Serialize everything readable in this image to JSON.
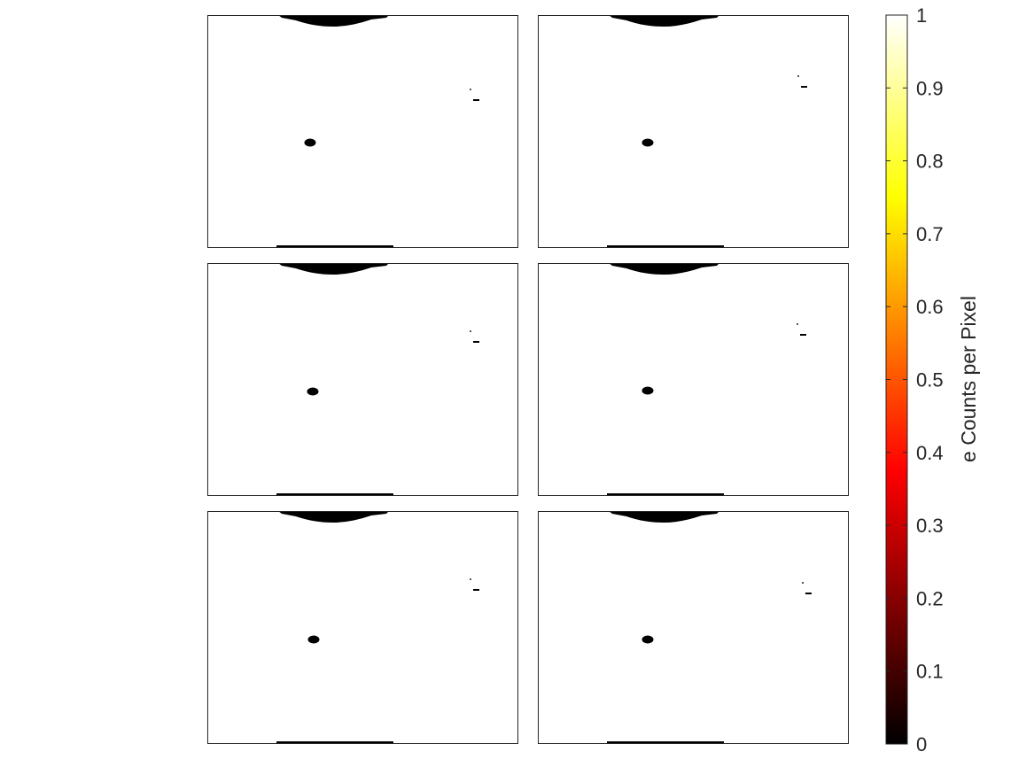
{
  "chart_data": {
    "type": "heatmap",
    "layout": "3 rows x 2 columns of image panels",
    "panels": [
      {
        "row": 1,
        "col": 1,
        "description": "mostly saturated (value 1) frame with dark arc at top edge, dark spot left-center, faint speck right"
      },
      {
        "row": 1,
        "col": 2,
        "description": "mostly saturated frame with dark arc at top edge, dark spot left-center, faint speck right"
      },
      {
        "row": 2,
        "col": 1,
        "description": "mostly saturated frame with dark arc at top edge, dark spot left-center, faint speck right"
      },
      {
        "row": 2,
        "col": 2,
        "description": "mostly saturated frame with dark arc at top edge, dark spot left-center, faint speck right"
      },
      {
        "row": 3,
        "col": 1,
        "description": "mostly saturated frame with dark arc at top edge, dark spot left-center, faint speck right"
      },
      {
        "row": 3,
        "col": 2,
        "description": "mostly saturated frame with dark arc at top edge, dark spot left-center, faint speck right"
      }
    ],
    "colormap": "hot",
    "clim": [
      0,
      1
    ],
    "colorbar": {
      "label": "e Counts per Pixel",
      "ticks": [
        0,
        0.1,
        0.2,
        0.3,
        0.4,
        0.5,
        0.6,
        0.7,
        0.8,
        0.9,
        1
      ],
      "tick_labels": [
        "0",
        "0.1",
        "0.2",
        "0.3",
        "0.4",
        "0.5",
        "0.6",
        "0.7",
        "0.8",
        "0.9",
        "1"
      ],
      "location": "right"
    },
    "colors": {
      "hot_stops": [
        "#000000",
        "#ff0000",
        "#ffff00",
        "#ffffff"
      ],
      "axis": "#262626"
    }
  }
}
